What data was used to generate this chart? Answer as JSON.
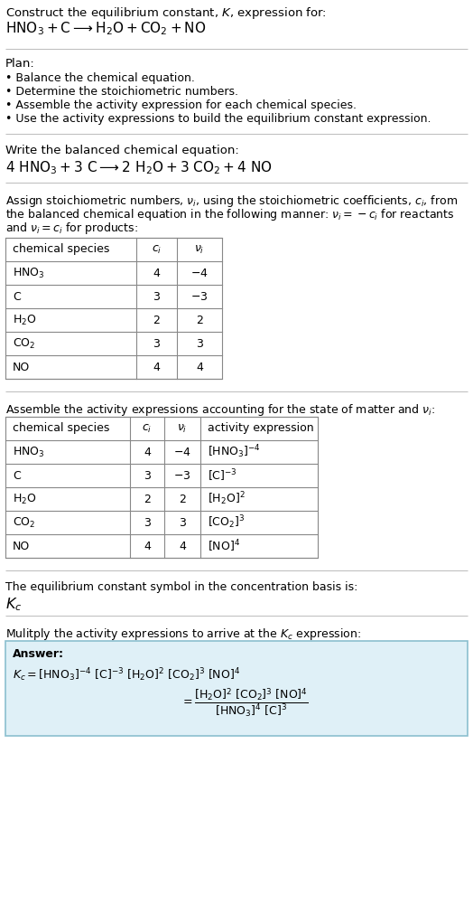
{
  "title_line1": "Construct the equilibrium constant, $K$, expression for:",
  "title_line2": "$\\mathrm{HNO_3 + C \\longrightarrow H_2O + CO_2 + NO}$",
  "plan_header": "Plan:",
  "plan_items": [
    "\\textbullet  Balance the chemical equation.",
    "\\textbullet  Determine the stoichiometric numbers.",
    "\\textbullet  Assemble the activity expression for each chemical species.",
    "\\textbullet  Use the activity expressions to build the equilibrium constant expression."
  ],
  "balanced_header": "Write the balanced chemical equation:",
  "balanced_eq": "$4\\ \\mathrm{HNO_3} + 3\\ \\mathrm{C} \\longrightarrow 2\\ \\mathrm{H_2O} + 3\\ \\mathrm{CO_2} + 4\\ \\mathrm{NO}$",
  "stoich_intro1": "Assign stoichiometric numbers, $\\nu_i$, using the stoichiometric coefficients, $c_i$, from",
  "stoich_intro2": "the balanced chemical equation in the following manner: $\\nu_i = -c_i$ for reactants",
  "stoich_intro3": "and $\\nu_i = c_i$ for products:",
  "table1_col1_header": "chemical species",
  "table1_col2_header": "$c_i$",
  "table1_col3_header": "$\\nu_i$",
  "table1_rows": [
    [
      "$\\mathrm{HNO_3}$",
      "4",
      "$-4$"
    ],
    [
      "C",
      "3",
      "$-3$"
    ],
    [
      "$\\mathrm{H_2O}$",
      "2",
      "2"
    ],
    [
      "$\\mathrm{CO_2}$",
      "3",
      "3"
    ],
    [
      "NO",
      "4",
      "4"
    ]
  ],
  "assemble_intro": "Assemble the activity expressions accounting for the state of matter and $\\nu_i$:",
  "table2_col1_header": "chemical species",
  "table2_col2_header": "$c_i$",
  "table2_col3_header": "$\\nu_i$",
  "table2_col4_header": "activity expression",
  "table2_rows": [
    [
      "$\\mathrm{HNO_3}$",
      "4",
      "$-4$",
      "$[\\mathrm{HNO_3}]^{-4}$"
    ],
    [
      "C",
      "3",
      "$-3$",
      "$[\\mathrm{C}]^{-3}$"
    ],
    [
      "$\\mathrm{H_2O}$",
      "2",
      "2",
      "$[\\mathrm{H_2O}]^{2}$"
    ],
    [
      "$\\mathrm{CO_2}$",
      "3",
      "3",
      "$[\\mathrm{CO_2}]^{3}$"
    ],
    [
      "NO",
      "4",
      "4",
      "$[\\mathrm{NO}]^{4}$"
    ]
  ],
  "kc_intro": "The equilibrium constant symbol in the concentration basis is:",
  "kc_symbol": "$K_c$",
  "multiply_intro": "Mulitply the activity expressions to arrive at the $K_c$ expression:",
  "answer_label": "Answer:",
  "bg_color": "#ffffff",
  "answer_bg": "#dff0f7",
  "answer_border": "#8bbfcf",
  "divider_color": "#bbbbbb",
  "text_color": "#000000"
}
